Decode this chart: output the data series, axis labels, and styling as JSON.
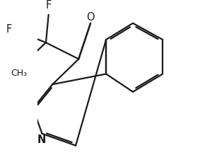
{
  "bg_color": "#ffffff",
  "line_color": "#1a1a1a",
  "line_width": 1.6,
  "font_size": 10.5,
  "label_F1": "F",
  "label_F2": "F",
  "label_O": "O",
  "label_N": "N",
  "label_CH3": "CH₃"
}
